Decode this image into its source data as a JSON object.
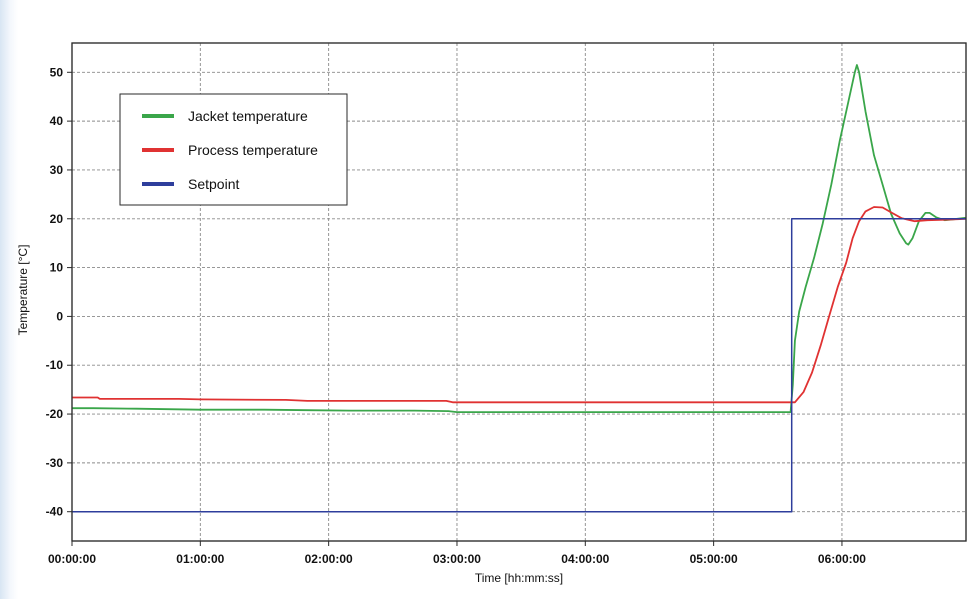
{
  "chart_data": {
    "type": "line",
    "title": "",
    "xlabel": "Time [hh:mm:ss]",
    "ylabel": "Temperature [°C]",
    "xlim_minutes": [
      0,
      418
    ],
    "ylim": [
      -46,
      56
    ],
    "x_ticks": [
      {
        "minutes": 0,
        "label": "00:00:00"
      },
      {
        "minutes": 60,
        "label": "01:00:00"
      },
      {
        "minutes": 120,
        "label": "02:00:00"
      },
      {
        "minutes": 180,
        "label": "03:00:00"
      },
      {
        "minutes": 240,
        "label": "04:00:00"
      },
      {
        "minutes": 300,
        "label": "05:00:00"
      },
      {
        "minutes": 360,
        "label": "06:00:00"
      }
    ],
    "y_ticks": [
      50,
      40,
      30,
      20,
      10,
      0,
      -10,
      -20,
      -30,
      -40
    ],
    "grid": true,
    "legend_position": "top-left",
    "series": [
      {
        "name": "Jacket temperature",
        "color": "#3aa64a",
        "points": [
          [
            0,
            -18.8
          ],
          [
            10,
            -18.8
          ],
          [
            30,
            -18.9
          ],
          [
            60,
            -19.1
          ],
          [
            90,
            -19.1
          ],
          [
            110,
            -19.2
          ],
          [
            130,
            -19.3
          ],
          [
            160,
            -19.3
          ],
          [
            176,
            -19.4
          ],
          [
            180,
            -19.6
          ],
          [
            220,
            -19.6
          ],
          [
            260,
            -19.6
          ],
          [
            300,
            -19.6
          ],
          [
            336,
            -19.6
          ],
          [
            337,
            -14
          ],
          [
            338,
            -5
          ],
          [
            340,
            1
          ],
          [
            343,
            6
          ],
          [
            347,
            12
          ],
          [
            351,
            19
          ],
          [
            355,
            27
          ],
          [
            359,
            36
          ],
          [
            363,
            44
          ],
          [
            366,
            50
          ],
          [
            367,
            51.5
          ],
          [
            368,
            50
          ],
          [
            371,
            42
          ],
          [
            375,
            33
          ],
          [
            379,
            27
          ],
          [
            383,
            21
          ],
          [
            387,
            17
          ],
          [
            390,
            15
          ],
          [
            391,
            14.7
          ],
          [
            393,
            16
          ],
          [
            396,
            19.5
          ],
          [
            399,
            21.2
          ],
          [
            401,
            21.2
          ],
          [
            404,
            20.3
          ],
          [
            408,
            19.7
          ],
          [
            412,
            19.9
          ],
          [
            418,
            20.2
          ]
        ]
      },
      {
        "name": "Process temperature",
        "color": "#e03232",
        "points": [
          [
            0,
            -16.6
          ],
          [
            12,
            -16.6
          ],
          [
            13,
            -16.9
          ],
          [
            50,
            -16.9
          ],
          [
            60,
            -17.0
          ],
          [
            100,
            -17.1
          ],
          [
            110,
            -17.3
          ],
          [
            175,
            -17.3
          ],
          [
            178,
            -17.6
          ],
          [
            240,
            -17.6
          ],
          [
            300,
            -17.6
          ],
          [
            333,
            -17.6
          ],
          [
            338,
            -17.6
          ],
          [
            342,
            -15.5
          ],
          [
            346,
            -11.5
          ],
          [
            350,
            -6
          ],
          [
            354,
            0
          ],
          [
            358,
            6
          ],
          [
            362,
            11
          ],
          [
            365,
            16
          ],
          [
            368,
            19.5
          ],
          [
            371,
            21.5
          ],
          [
            375,
            22.4
          ],
          [
            379,
            22.3
          ],
          [
            383,
            21.3
          ],
          [
            388,
            20.1
          ],
          [
            394,
            19.5
          ],
          [
            400,
            19.7
          ],
          [
            408,
            19.8
          ],
          [
            418,
            20
          ]
        ]
      },
      {
        "name": "Setpoint",
        "color": "#2e3e9c",
        "points": [
          [
            0,
            -40
          ],
          [
            336.5,
            -40
          ],
          [
            336.5,
            20
          ],
          [
            418,
            20
          ]
        ]
      }
    ]
  }
}
